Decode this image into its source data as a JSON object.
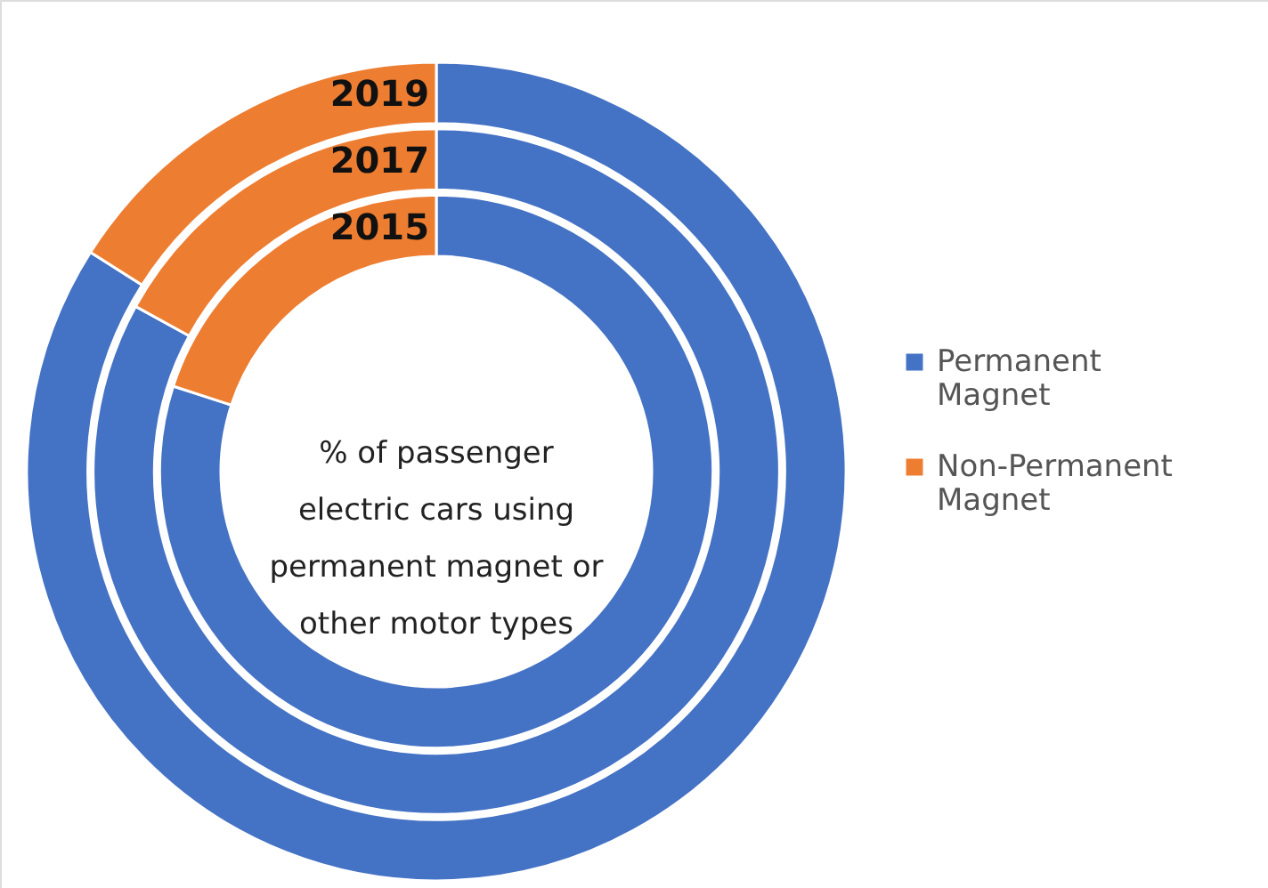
{
  "chart_data": {
    "type": "donut",
    "categories": [
      "Permanent Magnet",
      "Non-Permanent Magnet"
    ],
    "colors": [
      "#4472c4",
      "#ed7d31"
    ],
    "series": [
      {
        "name": "2015",
        "values": [
          80,
          20
        ]
      },
      {
        "name": "2017",
        "values": [
          83,
          17
        ]
      },
      {
        "name": "2019",
        "values": [
          84,
          16
        ]
      }
    ],
    "annotations": [
      "% of passenger electric cars using permanent magnet or other motor types"
    ],
    "legend": "right"
  }
}
